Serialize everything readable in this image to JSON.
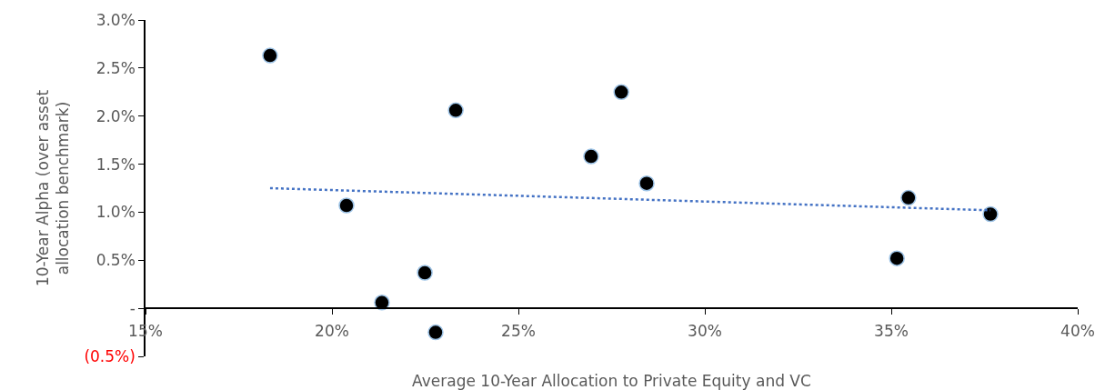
{
  "chart_data": {
    "type": "scatter",
    "xlabel": "Average 10-Year Allocation to Private Equity and VC",
    "ylabel": "10-Year Alpha (over asset allocation benchmark)",
    "x": [
      18.34,
      20.39,
      21.34,
      22.49,
      22.78,
      23.32,
      26.95,
      27.76,
      28.44,
      35.15,
      35.46,
      37.66
    ],
    "series": [
      {
        "color": "#000000",
        "marker": "circle",
        "values": [
          2.63,
          1.07,
          0.06,
          0.37,
          -0.25,
          2.06,
          1.58,
          2.25,
          1.3,
          0.52,
          1.15,
          0.98
        ]
      },
      {
        "type": "line",
        "color": "#4472c4",
        "line_style": "dotted",
        "marker": "none",
        "x": [
          18.34,
          37.66
        ],
        "values": [
          1.25,
          1.02
        ]
      }
    ],
    "xlim": [
      15,
      40
    ],
    "xticks": [
      {
        "value": 15,
        "label": "15%"
      },
      {
        "value": 20,
        "label": "20%"
      },
      {
        "value": 25,
        "label": "25%"
      },
      {
        "value": 30,
        "label": "30%"
      },
      {
        "value": 35,
        "label": "35%"
      },
      {
        "value": 40,
        "label": "40%"
      }
    ],
    "ylim": [
      -0.5,
      3.0
    ],
    "yticks": [
      {
        "value": -0.5,
        "label": "(0.5%)"
      },
      {
        "value": 0,
        "label": "-"
      },
      {
        "value": 0.5,
        "label": "0.5%"
      },
      {
        "value": 1,
        "label": "1.0%"
      },
      {
        "value": 1.5,
        "label": "1.5%"
      },
      {
        "value": 2,
        "label": "2.0%"
      },
      {
        "value": 2.5,
        "label": "2.5%"
      },
      {
        "value": 3,
        "label": "3.0%"
      }
    ],
    "grid": false
  }
}
